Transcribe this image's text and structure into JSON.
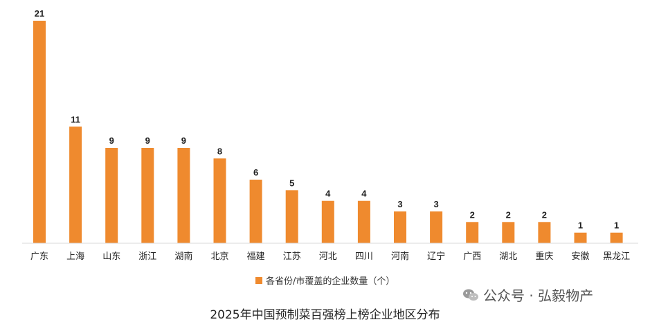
{
  "chart_data": {
    "type": "bar",
    "title": "2025年中国预制菜百强榜上榜企业地区分布",
    "categories": [
      "广东",
      "上海",
      "山东",
      "浙江",
      "湖南",
      "北京",
      "福建",
      "江苏",
      "河北",
      "四川",
      "河南",
      "辽宁",
      "广西",
      "湖北",
      "重庆",
      "安徽",
      "黑龙江"
    ],
    "series": [
      {
        "name": "各省份/市覆盖的企业数量（个）",
        "values": [
          21,
          11,
          9,
          9,
          9,
          8,
          6,
          5,
          4,
          4,
          3,
          3,
          2,
          2,
          2,
          1,
          1
        ]
      }
    ],
    "ylim": [
      0,
      21
    ],
    "bar_color": "#EF8A2E",
    "grid": false,
    "legend_position": "bottom"
  },
  "watermark": {
    "text": "公众号 · 弘毅物产",
    "icon": "wechat-icon"
  }
}
